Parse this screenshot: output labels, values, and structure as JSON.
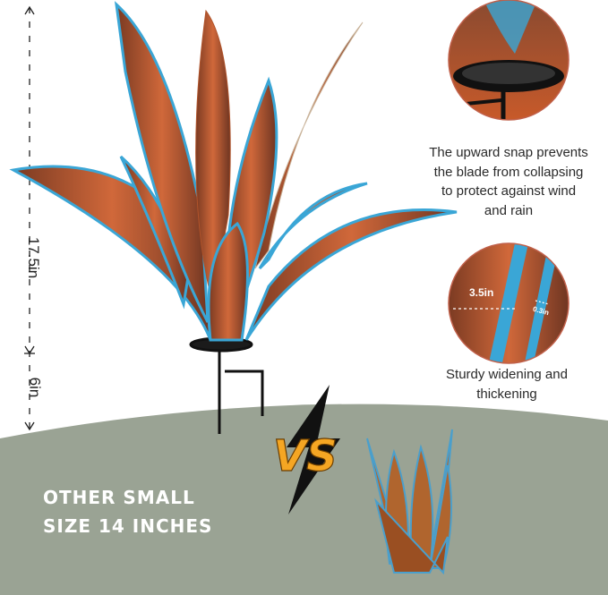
{
  "dimensions": {
    "height_label": "17.5in",
    "stake_label": "6in"
  },
  "callouts": [
    {
      "text": "The upward snap prevents the blade from collapsing to protect against wind and rain",
      "lines": [
        "The upward snap prevents",
        "the blade from collapsing",
        "to protect against wind",
        "and rain"
      ]
    },
    {
      "text": "Sturdy widening and thickening",
      "lines": [
        "Sturdy widening and",
        "thickening"
      ],
      "width_label": "3.5in",
      "thickness_label": "0.3in"
    }
  ],
  "comparison": {
    "vs_label": "VS",
    "lines": [
      "OTHER SMALL",
      "SIZE 14 INCHES"
    ]
  },
  "colors": {
    "copper": "#b0532a",
    "blue_edge": "#3aa6d6",
    "ground": "#9aa394",
    "vs_orange": "#f5a623"
  }
}
